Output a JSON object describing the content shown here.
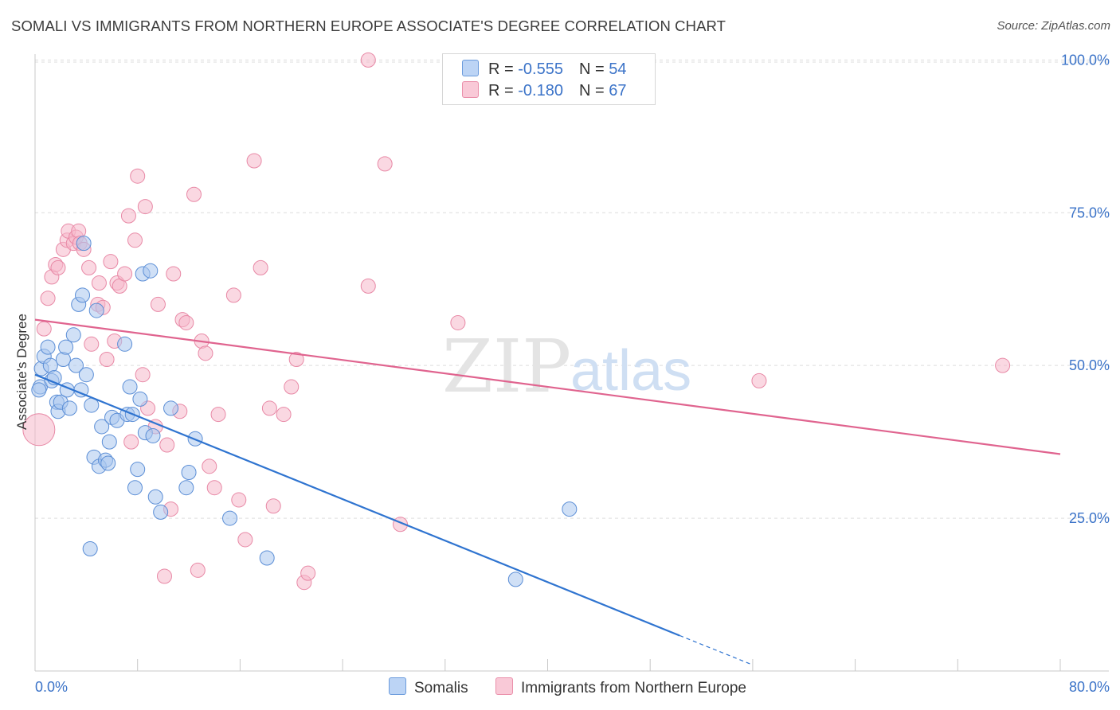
{
  "title": "SOMALI VS IMMIGRANTS FROM NORTHERN EUROPE ASSOCIATE'S DEGREE CORRELATION CHART",
  "source": "Source: ZipAtlas.com",
  "watermark": {
    "zip": "ZIP",
    "atlas": "atlas"
  },
  "legend": {
    "rows": [
      {
        "r_label": "R = ",
        "r_value": "-0.555",
        "n_label": "N = ",
        "n_value": "54"
      },
      {
        "r_label": "R = ",
        "r_value": "-0.180",
        "n_label": "N = ",
        "n_value": "67"
      }
    ]
  },
  "colors": {
    "somalis_fill": "#a9c7ef",
    "somalis_stroke": "#5b8ed6",
    "somalis_line": "#2f74d0",
    "immigrants_fill": "#f6b8cb",
    "immigrants_stroke": "#e889a6",
    "immigrants_line": "#e0648f",
    "tick_label": "#3b73c8",
    "grid": "#dddddd"
  },
  "chart_data": {
    "type": "scatter",
    "title": "SOMALI VS IMMIGRANTS FROM NORTHERN EUROPE ASSOCIATE'S DEGREE CORRELATION CHART",
    "xlabel": "",
    "ylabel": "Associate's Degree",
    "xlim": [
      0,
      80
    ],
    "ylim": [
      0,
      102
    ],
    "x_tick_labels": [
      "0.0%",
      "80.0%"
    ],
    "y_ticks": [
      25,
      50,
      75,
      100
    ],
    "y_tick_labels": [
      "25.0%",
      "50.0%",
      "75.0%",
      "100.0%"
    ],
    "grid": true,
    "legend_position": "top-center",
    "series": [
      {
        "name": "Somalis",
        "r": -0.555,
        "n": 54,
        "trend": {
          "x0": 0,
          "y0": 48.5,
          "x1": 50.3,
          "y1": 5.8,
          "dash_to_x": 56.0,
          "dash_to_y": 1.0
        },
        "points": [
          [
            0.4,
            46.5
          ],
          [
            0.5,
            49.5
          ],
          [
            0.7,
            51.5
          ],
          [
            1.0,
            53.0
          ],
          [
            1.2,
            50.0
          ],
          [
            1.3,
            47.5
          ],
          [
            1.5,
            48.0
          ],
          [
            1.7,
            44.0
          ],
          [
            1.8,
            42.5
          ],
          [
            2.0,
            44.0
          ],
          [
            2.2,
            51.0
          ],
          [
            2.4,
            53.0
          ],
          [
            2.5,
            46.0
          ],
          [
            2.7,
            43.0
          ],
          [
            3.0,
            55.0
          ],
          [
            3.2,
            50.0
          ],
          [
            3.4,
            60.0
          ],
          [
            3.6,
            46.0
          ],
          [
            3.7,
            61.5
          ],
          [
            3.8,
            70.0
          ],
          [
            4.0,
            48.5
          ],
          [
            4.4,
            43.5
          ],
          [
            4.6,
            35.0
          ],
          [
            4.8,
            59.0
          ],
          [
            5.0,
            33.5
          ],
          [
            5.2,
            40.0
          ],
          [
            5.5,
            34.5
          ],
          [
            5.7,
            34.0
          ],
          [
            5.8,
            37.5
          ],
          [
            6.0,
            41.5
          ],
          [
            6.4,
            41.0
          ],
          [
            7.0,
            53.5
          ],
          [
            7.2,
            42.0
          ],
          [
            7.4,
            46.5
          ],
          [
            7.6,
            42.0
          ],
          [
            7.8,
            30.0
          ],
          [
            8.0,
            33.0
          ],
          [
            8.2,
            44.5
          ],
          [
            8.4,
            65.0
          ],
          [
            8.6,
            39.0
          ],
          [
            9.0,
            65.5
          ],
          [
            9.2,
            38.5
          ],
          [
            9.4,
            28.5
          ],
          [
            9.8,
            26.0
          ],
          [
            10.6,
            43.0
          ],
          [
            11.8,
            30.0
          ],
          [
            12.0,
            32.5
          ],
          [
            12.5,
            38.0
          ],
          [
            15.2,
            25.0
          ],
          [
            18.1,
            18.5
          ],
          [
            4.3,
            20.0
          ],
          [
            37.5,
            15.0
          ],
          [
            41.7,
            26.5
          ],
          [
            0.3,
            46.0
          ]
        ]
      },
      {
        "name": "Immigrants from Northern Europe",
        "r": -0.18,
        "n": 67,
        "trend": {
          "x0": 0,
          "y0": 57.5,
          "x1": 80,
          "y1": 35.5
        },
        "points": [
          [
            0.3,
            39.5
          ],
          [
            0.7,
            56.0
          ],
          [
            1.0,
            61.0
          ],
          [
            1.3,
            64.5
          ],
          [
            1.6,
            66.5
          ],
          [
            1.8,
            66.0
          ],
          [
            2.2,
            69.0
          ],
          [
            2.5,
            70.5
          ],
          [
            2.6,
            72.0
          ],
          [
            3.0,
            70.0
          ],
          [
            3.2,
            71.0
          ],
          [
            3.4,
            72.0
          ],
          [
            3.5,
            70.0
          ],
          [
            3.8,
            69.0
          ],
          [
            4.2,
            66.0
          ],
          [
            4.4,
            53.5
          ],
          [
            4.9,
            60.0
          ],
          [
            5.0,
            63.5
          ],
          [
            5.3,
            59.5
          ],
          [
            5.6,
            51.0
          ],
          [
            5.9,
            67.0
          ],
          [
            6.2,
            54.0
          ],
          [
            6.4,
            63.5
          ],
          [
            6.6,
            63.0
          ],
          [
            7.0,
            65.0
          ],
          [
            7.3,
            74.5
          ],
          [
            7.5,
            37.5
          ],
          [
            7.8,
            70.5
          ],
          [
            8.0,
            81.0
          ],
          [
            8.4,
            48.5
          ],
          [
            8.6,
            76.0
          ],
          [
            8.8,
            43.0
          ],
          [
            9.4,
            40.0
          ],
          [
            9.6,
            60.0
          ],
          [
            10.1,
            15.5
          ],
          [
            10.3,
            37.0
          ],
          [
            10.6,
            26.5
          ],
          [
            10.8,
            65.0
          ],
          [
            11.3,
            42.5
          ],
          [
            11.5,
            57.5
          ],
          [
            11.8,
            57.0
          ],
          [
            12.4,
            78.0
          ],
          [
            12.7,
            16.5
          ],
          [
            13.0,
            54.0
          ],
          [
            13.3,
            52.0
          ],
          [
            13.6,
            33.5
          ],
          [
            14.0,
            30.0
          ],
          [
            14.3,
            42.0
          ],
          [
            15.5,
            61.5
          ],
          [
            15.9,
            28.0
          ],
          [
            16.4,
            21.5
          ],
          [
            17.1,
            83.5
          ],
          [
            17.6,
            66.0
          ],
          [
            18.3,
            43.0
          ],
          [
            18.6,
            27.0
          ],
          [
            20.0,
            46.5
          ],
          [
            20.4,
            51.0
          ],
          [
            21.0,
            14.5
          ],
          [
            21.3,
            16.0
          ],
          [
            26.0,
            63.0
          ],
          [
            26.0,
            100.0
          ],
          [
            27.3,
            83.0
          ],
          [
            28.5,
            24.0
          ],
          [
            33.0,
            57.0
          ],
          [
            56.5,
            47.5
          ],
          [
            75.5,
            50.0
          ],
          [
            19.4,
            42.0
          ]
        ]
      }
    ]
  },
  "bottom_legend": {
    "somalis": "Somalis",
    "immigrants": "Immigrants from Northern Europe"
  }
}
